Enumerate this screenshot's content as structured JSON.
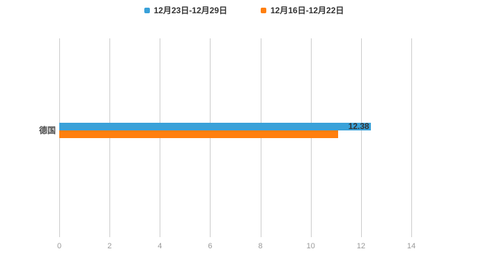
{
  "chart_data": {
    "type": "bar",
    "orientation": "horizontal",
    "title": "",
    "categories": [
      "德国"
    ],
    "series": [
      {
        "name": "12月23日-12月29日",
        "color": "#39A1D9",
        "values": [
          12.38
        ],
        "value_labels": [
          "12.38"
        ]
      },
      {
        "name": "12月16日-12月22日",
        "color": "#FF7F0E",
        "values": [
          11.1
        ],
        "value_labels": [
          ""
        ]
      }
    ],
    "xlim": [
      0,
      14
    ],
    "xticks": [
      0,
      2,
      4,
      6,
      8,
      10,
      12,
      14
    ],
    "grid": true,
    "legend_position": "top",
    "xlabel": "",
    "ylabel": ""
  },
  "colors": {
    "grid": "#cccccc",
    "tick_text": "#999999",
    "category_text": "#4d4d4d",
    "value_label_text": "#333333",
    "background": "#ffffff"
  }
}
